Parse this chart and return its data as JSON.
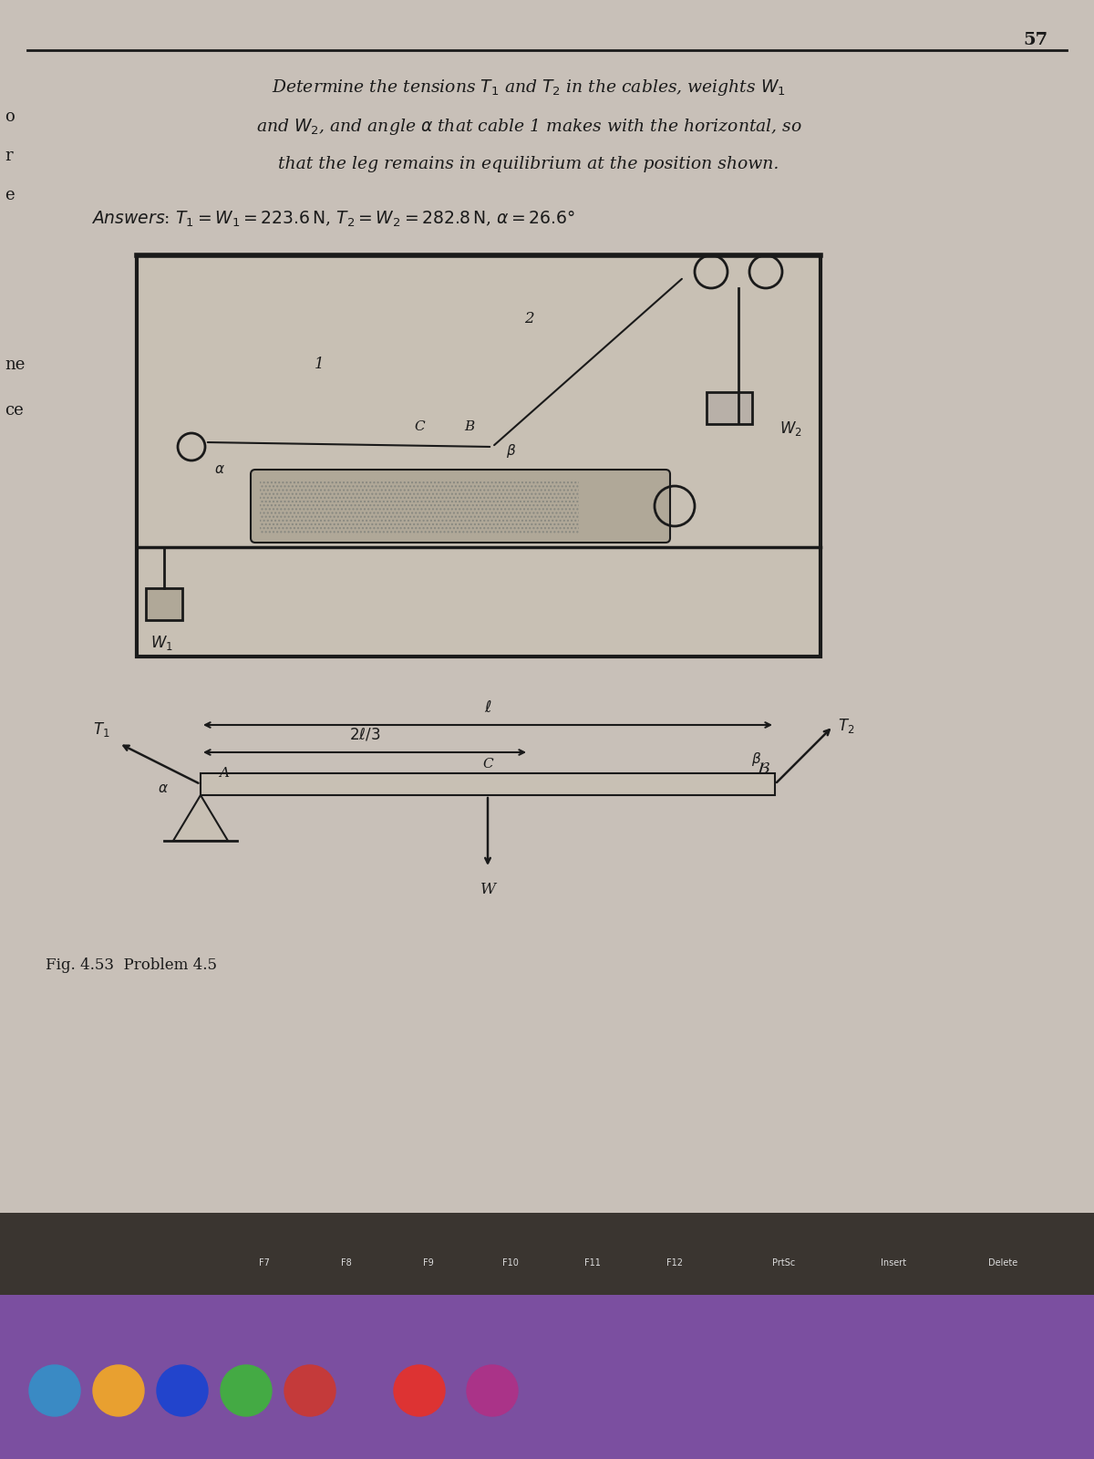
{
  "bg_color": "#c8c0b8",
  "page_bg": "#d4cdc5",
  "text_color": "#1a1a1a",
  "title_text": "Determine the tensions $T_1$ and $T_2$ in the cables, weights $W_1$",
  "title_line2": "and $W_2$, and angle α that cable 1 makes with the horizontal, so",
  "title_line3": "that the leg remains in equilibrium at the position shown.",
  "answer_text": "Answers: $T_1 = W_1 = 223.6$ N, $T_2 = W_2 = 282.8$ N, α = 26.6°",
  "fig_caption": "Fig. 4.53  Problem 4.5",
  "page_number": "57",
  "bottom_bar_color": "#7b4fa0",
  "keyboard_color": "#444444"
}
